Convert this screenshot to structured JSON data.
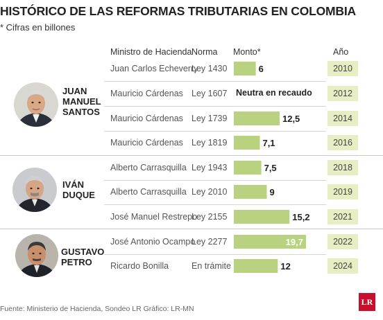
{
  "title": "HISTÓRICO DE LAS REFORMAS TRIBUTARIAS EN COLOMBIA",
  "subtitle": "* Cifras en billones",
  "columns": {
    "ministro": "Ministro de Hacienda",
    "norma": "Norma",
    "monto": "Monto*",
    "anio": "Año"
  },
  "presidents": [
    {
      "name_lines": [
        "JUAN",
        "MANUEL",
        "SANTOS"
      ]
    },
    {
      "name_lines": [
        "IVÁN",
        "DUQUE"
      ]
    },
    {
      "name_lines": [
        "GUSTAVO",
        "PETRO"
      ]
    }
  ],
  "neutral_label": "Neutra en recaudo",
  "source": "Fuente: Ministerio de Hacienda, Sondeo LR  Gráfico: LR-MN",
  "logo_text": "LR",
  "colors": {
    "bar": "#b9d27f",
    "year_badge": "#e7eec3",
    "logo": "#c8102e"
  },
  "chart_data": {
    "type": "bar",
    "title": "HISTÓRICO DE LAS REFORMAS TRIBUTARIAS EN COLOMBIA",
    "unit_note": "* Cifras en billones",
    "rows": [
      {
        "president": "JUAN MANUEL SANTOS",
        "minister": "Juan Carlos Echeverry",
        "law": "Ley 1430",
        "amount": 6,
        "amount_label": "6",
        "year": "2010"
      },
      {
        "president": "JUAN MANUEL SANTOS",
        "minister": "Mauricio Cárdenas",
        "law": "Ley 1607",
        "amount": null,
        "amount_label": "Neutra en recaudo",
        "year": "2012"
      },
      {
        "president": "JUAN MANUEL SANTOS",
        "minister": "Mauricio Cárdenas",
        "law": "Ley 1739",
        "amount": 12.5,
        "amount_label": "12,5",
        "year": "2014"
      },
      {
        "president": "JUAN MANUEL SANTOS",
        "minister": "Mauricio Cárdenas",
        "law": "Ley 1819",
        "amount": 7.1,
        "amount_label": "7,1",
        "year": "2016"
      },
      {
        "president": "IVÁN DUQUE",
        "minister": "Alberto Carrasquilla",
        "law": "Ley 1943",
        "amount": 7.5,
        "amount_label": "7,5",
        "year": "2018"
      },
      {
        "president": "IVÁN DUQUE",
        "minister": "Alberto Carrasquilla",
        "law": "Ley 2010",
        "amount": 9,
        "amount_label": "9",
        "year": "2019"
      },
      {
        "president": "IVÁN DUQUE",
        "minister": "José Manuel Restrepo",
        "law": "Ley 2155",
        "amount": 15.2,
        "amount_label": "15,2",
        "year": "2021"
      },
      {
        "president": "GUSTAVO PETRO",
        "minister": "José Antonio Ocampo",
        "law": "Ley 2277",
        "amount": 19.7,
        "amount_label": "19,7",
        "year": "2022"
      },
      {
        "president": "GUSTAVO PETRO",
        "minister": "Ricardo Bonilla",
        "law": "En trámite",
        "amount": 12,
        "amount_label": "12",
        "year": "2024"
      }
    ],
    "xlim": [
      0,
      19.7
    ],
    "grid": false,
    "legend": "none"
  }
}
